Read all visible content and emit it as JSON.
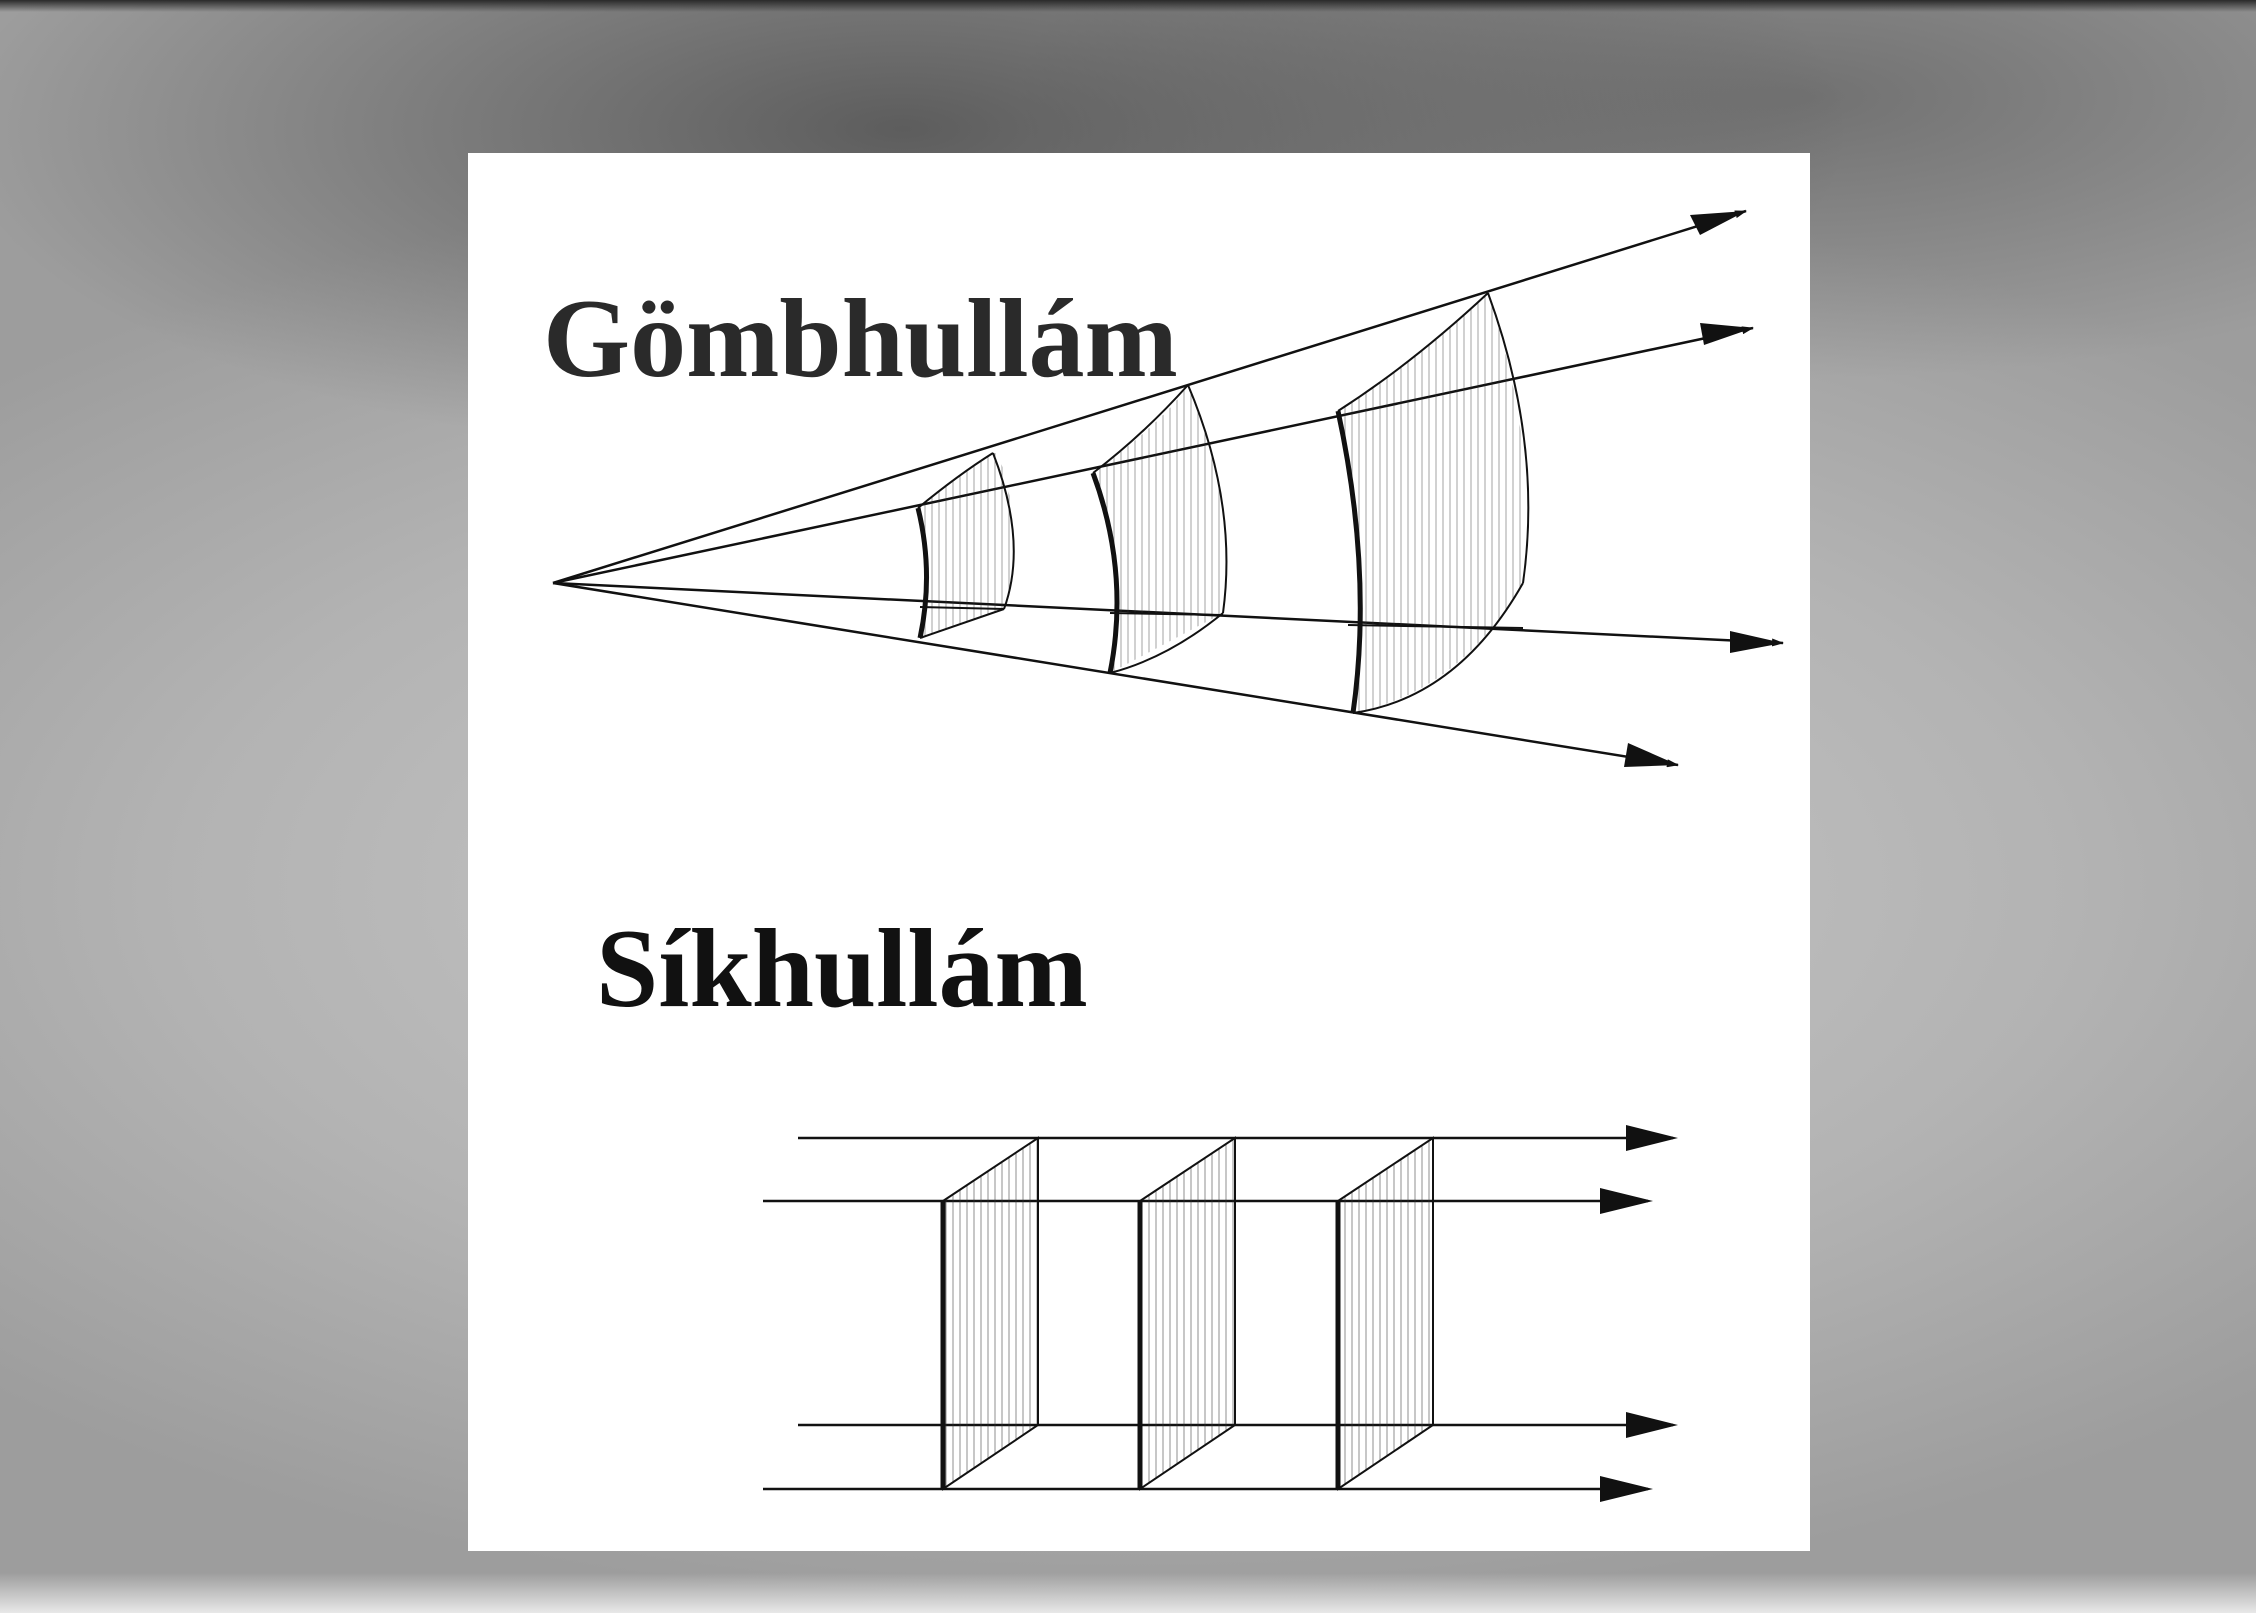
{
  "diagram": {
    "spherical_label": "Gömbhullám",
    "plane_label": "Síkhullám",
    "colors": {
      "background": "#b8b8b8",
      "card": "#ffffff",
      "ink": "#111111"
    }
  }
}
